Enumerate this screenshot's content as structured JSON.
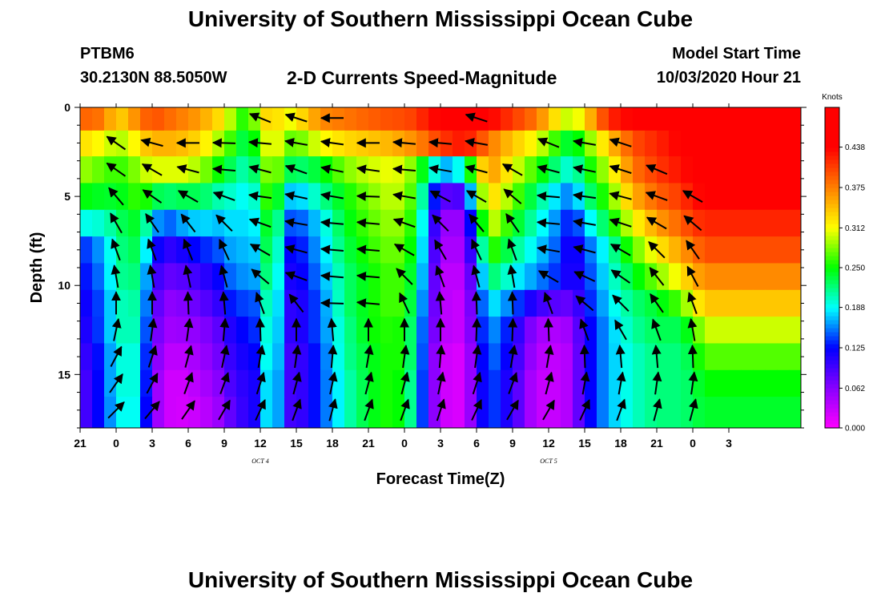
{
  "header": {
    "title": "University of Southern Mississippi Ocean Cube",
    "station": "PTBM6",
    "coords": "30.2130N 88.5050W",
    "chart_title": "2-D Currents Speed-Magnitude",
    "start_label": "Model Start Time",
    "start_value": "10/03/2020 Hour 21"
  },
  "footer": {
    "title": "University of Southern Mississippi Ocean Cube"
  },
  "chart_data": {
    "type": "heatmap",
    "title": "2-D Currents Speed-Magnitude",
    "xlabel": "Forecast Time(Z)",
    "ylabel": "Depth (ft)",
    "x_start_hour": 21,
    "x_step_hours": 1,
    "x_ticks": [
      "21",
      "0",
      "3",
      "6",
      "9",
      "12",
      "15",
      "18",
      "21",
      "0",
      "3",
      "6",
      "9",
      "12",
      "15",
      "18",
      "21",
      "0",
      "3"
    ],
    "date_labels": [
      {
        "text": "OCT 4",
        "at_tick": 5
      },
      {
        "text": "OCT 5",
        "at_tick": 13
      }
    ],
    "y_ticks": [
      0,
      5,
      10,
      15
    ],
    "ylim": [
      0,
      18
    ],
    "y_inverted": true,
    "colorbar": {
      "title": "Knots",
      "range": [
        0,
        0.5
      ],
      "ticks": [
        "0.000",
        "0.062",
        "0.125",
        "0.188",
        "0.250",
        "0.312",
        "0.375",
        "0.438"
      ],
      "colors": [
        "#ff00ff",
        "#8800ff",
        "#0000ff",
        "#00ffff",
        "#00ff00",
        "#ffff00",
        "#ff8000",
        "#ff0000"
      ]
    },
    "depths": [
      0.6,
      2.0,
      3.5,
      5.0,
      6.5,
      8.0,
      9.5,
      11.0,
      12.5,
      14.0,
      15.5,
      17.0
    ],
    "speed_keyframes": {
      "hours": [
        0,
        2,
        3,
        4,
        5,
        6,
        7,
        8,
        10,
        12,
        13,
        14,
        15,
        16,
        17,
        18,
        20,
        22,
        24,
        26,
        27,
        28,
        29,
        30,
        31,
        32,
        33,
        34,
        36,
        38,
        40,
        41,
        42,
        44,
        46,
        48,
        50,
        51,
        52,
        54
      ],
      "values": [
        [
          0.39,
          0.38,
          0.33,
          0.35,
          0.38,
          0.4,
          0.39,
          0.38,
          0.36,
          0.32,
          0.27,
          0.25,
          0.31,
          0.35,
          0.3,
          0.32,
          0.37,
          0.38,
          0.39,
          0.4,
          0.4,
          0.41,
          0.43,
          0.44,
          0.45,
          0.46,
          0.45,
          0.44,
          0.41,
          0.38,
          0.31,
          0.29,
          0.33,
          0.42,
          0.44,
          0.45,
          0.46,
          0.46,
          0.46,
          0.46
        ],
        [
          0.33,
          0.31,
          0.29,
          0.3,
          0.33,
          0.35,
          0.35,
          0.35,
          0.33,
          0.28,
          0.25,
          0.22,
          0.28,
          0.33,
          0.28,
          0.27,
          0.31,
          0.33,
          0.34,
          0.35,
          0.36,
          0.37,
          0.39,
          0.41,
          0.42,
          0.43,
          0.41,
          0.38,
          0.34,
          0.31,
          0.25,
          0.23,
          0.27,
          0.34,
          0.4,
          0.42,
          0.44,
          0.45,
          0.45,
          0.45
        ],
        [
          0.29,
          0.27,
          0.26,
          0.27,
          0.29,
          0.31,
          0.3,
          0.31,
          0.29,
          0.24,
          0.22,
          0.2,
          0.25,
          0.31,
          0.24,
          0.22,
          0.24,
          0.28,
          0.3,
          0.31,
          0.3,
          0.27,
          0.22,
          0.17,
          0.17,
          0.21,
          0.3,
          0.37,
          0.31,
          0.26,
          0.21,
          0.19,
          0.24,
          0.3,
          0.38,
          0.41,
          0.43,
          0.44,
          0.44,
          0.44
        ],
        [
          0.25,
          0.24,
          0.24,
          0.25,
          0.27,
          0.24,
          0.22,
          0.23,
          0.23,
          0.2,
          0.2,
          0.18,
          0.22,
          0.3,
          0.18,
          0.17,
          0.21,
          0.25,
          0.28,
          0.3,
          0.29,
          0.25,
          0.17,
          0.09,
          0.08,
          0.1,
          0.24,
          0.34,
          0.28,
          0.22,
          0.17,
          0.15,
          0.21,
          0.27,
          0.35,
          0.39,
          0.41,
          0.43,
          0.44,
          0.44
        ],
        [
          0.19,
          0.2,
          0.22,
          0.24,
          0.24,
          0.18,
          0.14,
          0.16,
          0.18,
          0.17,
          0.19,
          0.17,
          0.2,
          0.28,
          0.15,
          0.14,
          0.18,
          0.24,
          0.27,
          0.29,
          0.28,
          0.24,
          0.14,
          0.06,
          0.05,
          0.06,
          0.19,
          0.31,
          0.25,
          0.2,
          0.15,
          0.12,
          0.17,
          0.24,
          0.31,
          0.36,
          0.39,
          0.41,
          0.42,
          0.42
        ],
        [
          0.13,
          0.17,
          0.21,
          0.23,
          0.23,
          0.14,
          0.1,
          0.11,
          0.13,
          0.15,
          0.18,
          0.16,
          0.19,
          0.27,
          0.13,
          0.12,
          0.17,
          0.23,
          0.26,
          0.28,
          0.27,
          0.23,
          0.13,
          0.05,
          0.04,
          0.05,
          0.15,
          0.27,
          0.22,
          0.18,
          0.14,
          0.1,
          0.14,
          0.2,
          0.27,
          0.32,
          0.36,
          0.38,
          0.4,
          0.4
        ],
        [
          0.12,
          0.16,
          0.21,
          0.22,
          0.22,
          0.11,
          0.08,
          0.08,
          0.1,
          0.13,
          0.17,
          0.15,
          0.18,
          0.26,
          0.12,
          0.11,
          0.16,
          0.22,
          0.25,
          0.27,
          0.26,
          0.22,
          0.12,
          0.04,
          0.03,
          0.04,
          0.12,
          0.23,
          0.19,
          0.16,
          0.13,
          0.1,
          0.13,
          0.19,
          0.24,
          0.28,
          0.32,
          0.35,
          0.37,
          0.37
        ],
        [
          0.11,
          0.15,
          0.2,
          0.21,
          0.21,
          0.1,
          0.06,
          0.06,
          0.08,
          0.11,
          0.15,
          0.13,
          0.16,
          0.25,
          0.11,
          0.1,
          0.15,
          0.22,
          0.25,
          0.27,
          0.26,
          0.21,
          0.11,
          0.04,
          0.03,
          0.03,
          0.11,
          0.19,
          0.15,
          0.1,
          0.08,
          0.08,
          0.12,
          0.18,
          0.22,
          0.24,
          0.27,
          0.31,
          0.34,
          0.34
        ],
        [
          0.1,
          0.15,
          0.2,
          0.21,
          0.2,
          0.09,
          0.05,
          0.05,
          0.06,
          0.09,
          0.13,
          0.12,
          0.15,
          0.24,
          0.11,
          0.1,
          0.15,
          0.21,
          0.25,
          0.26,
          0.25,
          0.2,
          0.1,
          0.04,
          0.03,
          0.03,
          0.1,
          0.17,
          0.12,
          0.05,
          0.04,
          0.06,
          0.11,
          0.17,
          0.21,
          0.23,
          0.23,
          0.26,
          0.3,
          0.3
        ],
        [
          0.09,
          0.14,
          0.19,
          0.2,
          0.19,
          0.08,
          0.04,
          0.03,
          0.05,
          0.08,
          0.12,
          0.11,
          0.14,
          0.24,
          0.1,
          0.09,
          0.14,
          0.21,
          0.24,
          0.26,
          0.25,
          0.2,
          0.09,
          0.03,
          0.02,
          0.02,
          0.09,
          0.16,
          0.11,
          0.04,
          0.03,
          0.05,
          0.11,
          0.17,
          0.2,
          0.22,
          0.22,
          0.24,
          0.27,
          0.27
        ],
        [
          0.08,
          0.14,
          0.19,
          0.2,
          0.19,
          0.07,
          0.03,
          0.02,
          0.04,
          0.07,
          0.11,
          0.1,
          0.13,
          0.23,
          0.1,
          0.09,
          0.14,
          0.2,
          0.24,
          0.26,
          0.24,
          0.19,
          0.09,
          0.03,
          0.02,
          0.02,
          0.09,
          0.15,
          0.1,
          0.03,
          0.03,
          0.05,
          0.11,
          0.17,
          0.2,
          0.22,
          0.22,
          0.23,
          0.25,
          0.25
        ],
        [
          0.08,
          0.14,
          0.18,
          0.2,
          0.18,
          0.07,
          0.03,
          0.02,
          0.03,
          0.06,
          0.1,
          0.1,
          0.13,
          0.23,
          0.1,
          0.09,
          0.14,
          0.2,
          0.24,
          0.26,
          0.24,
          0.19,
          0.09,
          0.03,
          0.02,
          0.02,
          0.09,
          0.15,
          0.1,
          0.03,
          0.03,
          0.05,
          0.11,
          0.17,
          0.2,
          0.22,
          0.22,
          0.23,
          0.24,
          0.24
        ]
      ]
    },
    "arrow_columns": {
      "hours": [
        0,
        3,
        6,
        9,
        12,
        15,
        18,
        21,
        24,
        27,
        30,
        33,
        36,
        39,
        42,
        45,
        48,
        51,
        54,
        57,
        60
      ],
      "directions_deg": [
        [
          null,
          null,
          null,
          null,
          null,
          158,
          162,
          180,
          null,
          null,
          null,
          162,
          null,
          null,
          null,
          null,
          null,
          null,
          null,
          null,
          null
        ],
        [
          null,
          145,
          165,
          180,
          178,
          175,
          170,
          172,
          180,
          175,
          175,
          170,
          null,
          158,
          170,
          162,
          null,
          null,
          null,
          null,
          null
        ],
        [
          null,
          145,
          150,
          165,
          175,
          165,
          160,
          168,
          172,
          175,
          170,
          165,
          150,
          165,
          168,
          162,
          157,
          null,
          null,
          null,
          null
        ],
        [
          null,
          130,
          145,
          150,
          160,
          172,
          168,
          170,
          178,
          170,
          152,
          150,
          140,
          175,
          172,
          165,
          160,
          150,
          null,
          null,
          null
        ],
        [
          null,
          120,
          125,
          128,
          135,
          160,
          170,
          175,
          175,
          160,
          135,
          130,
          125,
          175,
          170,
          162,
          150,
          140,
          null,
          null,
          null
        ],
        [
          null,
          110,
          110,
          112,
          115,
          150,
          165,
          175,
          175,
          150,
          120,
          115,
          110,
          170,
          165,
          150,
          135,
          125,
          null,
          null,
          null
        ],
        [
          null,
          100,
          100,
          102,
          105,
          140,
          160,
          175,
          175,
          135,
          110,
          105,
          100,
          150,
          155,
          145,
          128,
          118,
          null,
          null,
          null
        ],
        [
          null,
          90,
          90,
          92,
          95,
          110,
          128,
          178,
          175,
          115,
          95,
          92,
          92,
          110,
          140,
          135,
          125,
          110,
          null,
          null,
          null
        ],
        [
          null,
          78,
          82,
          82,
          85,
          92,
          90,
          95,
          90,
          90,
          90,
          88,
          88,
          92,
          110,
          120,
          110,
          100,
          null,
          null,
          null
        ],
        [
          null,
          62,
          72,
          75,
          78,
          80,
          82,
          85,
          80,
          82,
          85,
          82,
          80,
          80,
          92,
          95,
          95,
          92,
          null,
          null,
          null
        ],
        [
          null,
          55,
          62,
          70,
          70,
          72,
          75,
          78,
          75,
          75,
          78,
          72,
          70,
          75,
          80,
          80,
          82,
          82,
          null,
          null,
          null
        ],
        [
          null,
          45,
          50,
          55,
          60,
          65,
          70,
          75,
          70,
          70,
          72,
          65,
          60,
          60,
          65,
          70,
          75,
          75,
          null,
          null,
          null
        ]
      ]
    }
  }
}
